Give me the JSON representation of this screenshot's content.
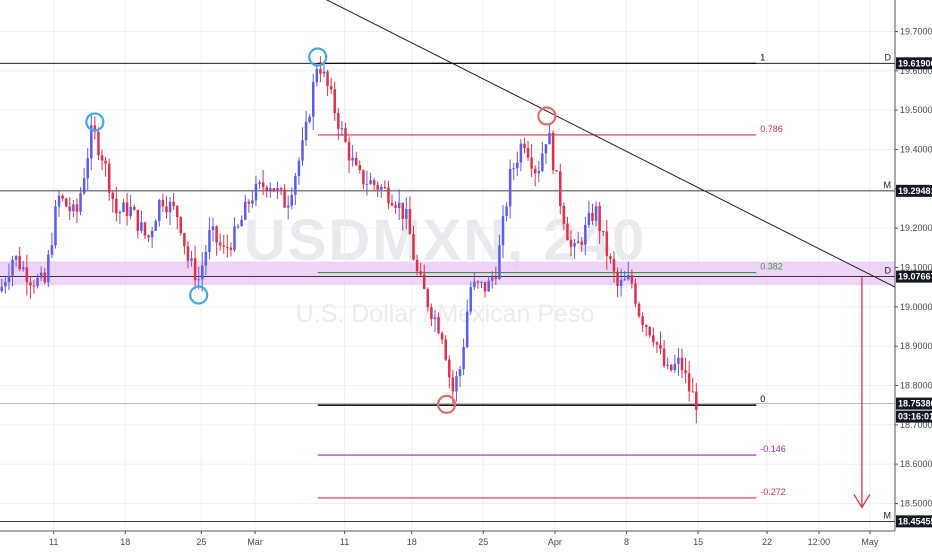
{
  "watermark": {
    "symbol": "USDMXN, 240",
    "name": "U.S. Dollar / Mexican Peso"
  },
  "colors": {
    "bull": "#5b5cf0",
    "bear": "#e0314b",
    "fib_top": "#000000",
    "fib_786": "#e0314b",
    "fib_382": "#3c9a3c",
    "fib_neg146": "#9b29b0",
    "fib_neg272": "#e0314b",
    "zone": "#e8c7f5",
    "circle_blue": "#42a9e6",
    "circle_red": "#e46b6b",
    "arrow": "#e0314b"
  },
  "chart_data": {
    "type": "candlestick",
    "symbol": "USDMXN",
    "timeframe": "240",
    "ylim": [
      18.43,
      19.78
    ],
    "y_ticks": [
      "19.70000",
      "19.60000",
      "19.50000",
      "19.40000",
      "19.30000",
      "19.20000",
      "19.10000",
      "19.00000",
      "18.90000",
      "18.80000",
      "18.70000",
      "18.60000",
      "18.50000"
    ],
    "x_ticks": [
      {
        "label": "11",
        "t": 0.06
      },
      {
        "label": "18",
        "t": 0.14
      },
      {
        "label": "25",
        "t": 0.225
      },
      {
        "label": "Mar",
        "t": 0.285
      },
      {
        "label": "11",
        "t": 0.385
      },
      {
        "label": "18",
        "t": 0.46
      },
      {
        "label": "25",
        "t": 0.54
      },
      {
        "label": "Apr",
        "t": 0.62
      },
      {
        "label": "8",
        "t": 0.7
      },
      {
        "label": "15",
        "t": 0.78
      },
      {
        "label": "22",
        "t": 0.857
      },
      {
        "label": "12:00",
        "t": 0.915
      },
      {
        "label": "May",
        "t": 0.972
      }
    ],
    "fib_levels": [
      {
        "ratio": "1",
        "price": 19.619
      },
      {
        "ratio": "0.786",
        "price": 19.437
      },
      {
        "ratio": "0.382",
        "price": 19.087
      },
      {
        "ratio": "0",
        "price": 18.75
      },
      {
        "ratio": "-0.146",
        "price": 18.623
      },
      {
        "ratio": "-0.272",
        "price": 18.514
      }
    ],
    "horizontal_levels": [
      {
        "price": "19.61900",
        "tag": "D",
        "color": "#000000"
      },
      {
        "price": "19.29481",
        "tag": "M",
        "color": "#000000"
      },
      {
        "price": "19.07667",
        "tag": "D",
        "color": "#000000"
      },
      {
        "price": "18.75386",
        "tag": "",
        "color": "#7f7f7f"
      },
      {
        "price": "18.45455",
        "tag": "M",
        "color": "#000000"
      }
    ],
    "countdown": "03:16:01",
    "zone": {
      "from": 19.055,
      "to": 19.115
    },
    "trendline": {
      "from": {
        "t": 0.235,
        "price": 19.93
      },
      "to": {
        "t": 1.0,
        "price": 19.05
      }
    },
    "target_arrow": {
      "t": 0.963,
      "from": 19.075,
      "to": 18.49
    },
    "circles": [
      {
        "t": 0.106,
        "price": 19.47,
        "color": "blue"
      },
      {
        "t": 0.222,
        "price": 19.03,
        "color": "blue"
      },
      {
        "t": 0.355,
        "price": 19.635,
        "color": "blue"
      },
      {
        "t": 0.499,
        "price": 18.752,
        "color": "red"
      },
      {
        "t": 0.611,
        "price": 19.485,
        "color": "red"
      }
    ],
    "path": [
      [
        0.0,
        19.04
      ],
      [
        0.015,
        19.13
      ],
      [
        0.035,
        19.07
      ],
      [
        0.05,
        19.06
      ],
      [
        0.065,
        19.28
      ],
      [
        0.085,
        19.23
      ],
      [
        0.103,
        19.45
      ],
      [
        0.115,
        19.38
      ],
      [
        0.13,
        19.24
      ],
      [
        0.145,
        19.25
      ],
      [
        0.165,
        19.17
      ],
      [
        0.18,
        19.28
      ],
      [
        0.2,
        19.23
      ],
      [
        0.21,
        19.12
      ],
      [
        0.222,
        19.07
      ],
      [
        0.235,
        19.19
      ],
      [
        0.25,
        19.14
      ],
      [
        0.265,
        19.19
      ],
      [
        0.28,
        19.28
      ],
      [
        0.3,
        19.32
      ],
      [
        0.32,
        19.26
      ],
      [
        0.34,
        19.42
      ],
      [
        0.355,
        19.63
      ],
      [
        0.37,
        19.53
      ],
      [
        0.385,
        19.42
      ],
      [
        0.4,
        19.33
      ],
      [
        0.42,
        19.31
      ],
      [
        0.44,
        19.28
      ],
      [
        0.455,
        19.22
      ],
      [
        0.465,
        19.09
      ],
      [
        0.48,
        19.0
      ],
      [
        0.495,
        18.93
      ],
      [
        0.505,
        18.78
      ],
      [
        0.515,
        18.85
      ],
      [
        0.525,
        19.05
      ],
      [
        0.545,
        19.05
      ],
      [
        0.555,
        19.1
      ],
      [
        0.57,
        19.33
      ],
      [
        0.585,
        19.43
      ],
      [
        0.6,
        19.34
      ],
      [
        0.612,
        19.45
      ],
      [
        0.625,
        19.28
      ],
      [
        0.64,
        19.13
      ],
      [
        0.655,
        19.2
      ],
      [
        0.665,
        19.25
      ],
      [
        0.675,
        19.16
      ],
      [
        0.69,
        19.05
      ],
      [
        0.705,
        19.07
      ],
      [
        0.715,
        18.98
      ],
      [
        0.73,
        18.93
      ],
      [
        0.745,
        18.83
      ],
      [
        0.76,
        18.86
      ],
      [
        0.77,
        18.79
      ],
      [
        0.78,
        18.75
      ]
    ]
  }
}
